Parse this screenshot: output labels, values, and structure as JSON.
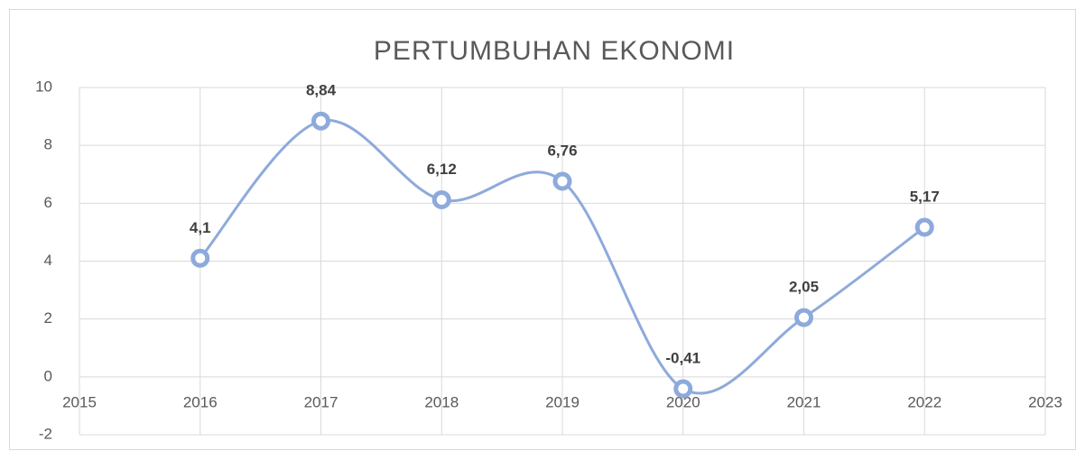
{
  "chart_data": {
    "type": "line",
    "title": "PERTUMBUHAN EKONOMI",
    "x": [
      2016,
      2017,
      2018,
      2019,
      2020,
      2021,
      2022
    ],
    "values": [
      4.1,
      8.84,
      6.12,
      6.76,
      -0.41,
      2.05,
      5.17
    ],
    "value_labels": [
      "4,1",
      "8,84",
      "6,12",
      "6,76",
      "-0,41",
      "2,05",
      "5,17"
    ],
    "color": "#8eaadb",
    "smooth": true,
    "xlim": [
      2015,
      2023
    ],
    "xticks": [
      2015,
      2016,
      2017,
      2018,
      2019,
      2020,
      2021,
      2022,
      2023
    ],
    "ylim": [
      -2,
      10
    ],
    "yticks": [
      -2,
      0,
      2,
      4,
      6,
      8,
      10
    ],
    "grid": true
  }
}
